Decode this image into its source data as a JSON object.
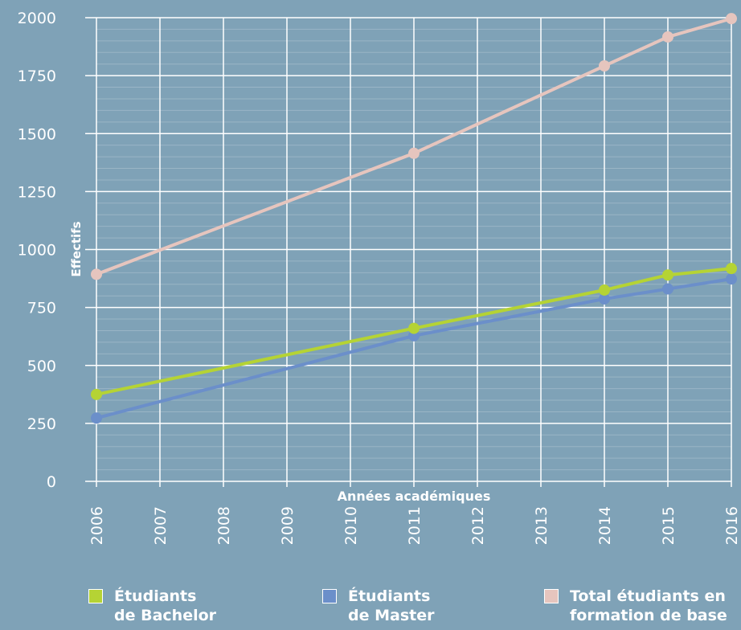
{
  "chart_data": {
    "type": "line",
    "xlabel": "Années académiques",
    "ylabel": "Effectifs",
    "x": [
      "2006",
      "2007",
      "2008",
      "2009",
      "2010",
      "2011",
      "2012",
      "2013",
      "2014",
      "2015",
      "2016"
    ],
    "ylim": [
      0,
      2000
    ],
    "yticks": [
      "0",
      "250",
      "500",
      "750",
      "1000",
      "1250",
      "1500",
      "1750",
      "2000"
    ],
    "grid": true,
    "legend_position": "bottom",
    "series": [
      {
        "name": "Étudiants\nde Bachelor",
        "color": "#b5d334",
        "points": [
          [
            "2006",
            375
          ],
          [
            "2011",
            660
          ],
          [
            "2014",
            825
          ],
          [
            "2015",
            890
          ],
          [
            "2016",
            918
          ]
        ]
      },
      {
        "name": "Étudiants\nde Master",
        "color": "#6b8fca",
        "points": [
          [
            "2006",
            273
          ],
          [
            "2011",
            628
          ],
          [
            "2014",
            787
          ],
          [
            "2015",
            830
          ],
          [
            "2016",
            873
          ]
        ]
      },
      {
        "name": "Total étudiants en\nformation de base",
        "color": "#e6c5be",
        "points": [
          [
            "2006",
            893
          ],
          [
            "2011",
            1415
          ],
          [
            "2014",
            1792
          ],
          [
            "2015",
            1917
          ],
          [
            "2016",
            1996
          ]
        ]
      }
    ]
  }
}
